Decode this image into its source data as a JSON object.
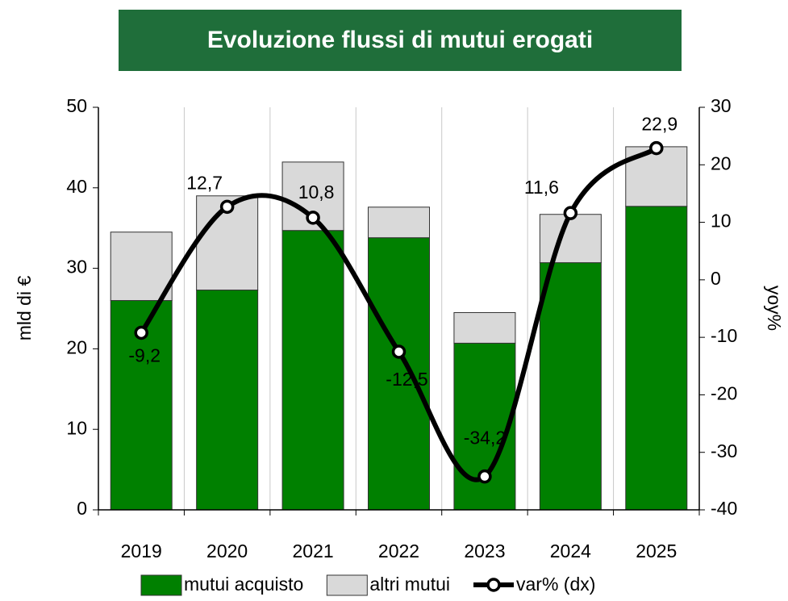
{
  "chart_data": {
    "type": "bar_line",
    "title": "Evoluzione flussi di mutui erogati",
    "ylabel": "mld di €",
    "y2label": "yoy%",
    "categories": [
      "2019",
      "2020",
      "2021",
      "2022",
      "2023",
      "2024",
      "2025"
    ],
    "stacked": true,
    "series": [
      {
        "name": "mutui acquisto",
        "type": "bar",
        "color": "#008000",
        "values": [
          26.0,
          27.3,
          34.7,
          33.8,
          20.7,
          30.7,
          37.7
        ]
      },
      {
        "name": "altri mutui",
        "type": "bar",
        "color": "#d9d9d9",
        "values": [
          8.5,
          11.7,
          8.5,
          3.8,
          3.8,
          6.0,
          7.4
        ]
      },
      {
        "name": "var% (dx)",
        "type": "line",
        "axis": "y2",
        "color": "#000000",
        "smooth": true,
        "values": [
          -9.2,
          12.7,
          10.8,
          -12.5,
          -34.2,
          11.6,
          22.9
        ],
        "value_labels": [
          "-9,2",
          "12,7",
          "10,8",
          "-12,5",
          "-34,2",
          "11,6",
          "22,9"
        ]
      }
    ],
    "ylim": [
      0,
      50
    ],
    "yticks": [
      0,
      10,
      20,
      30,
      40,
      50
    ],
    "y2lim": [
      -40,
      30
    ],
    "y2ticks": [
      -40,
      -30,
      -20,
      -10,
      0,
      10,
      20,
      30
    ],
    "legend": "bottom"
  }
}
